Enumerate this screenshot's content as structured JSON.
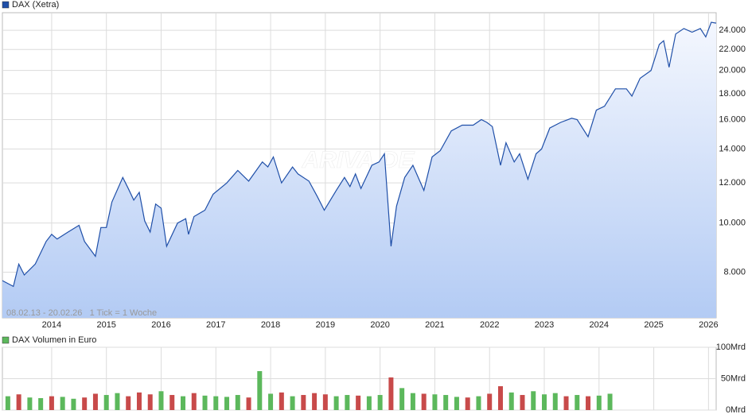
{
  "chart_data": [
    {
      "type": "line",
      "log_scale": true,
      "grid": true,
      "note": "08.02.13 - 20.02.26   1 Tick = 1 Woche",
      "watermark": "ARIVA.DE",
      "x": [
        2013.1,
        2013.3,
        2013.4,
        2013.5,
        2013.7,
        2013.9,
        2014.0,
        2014.1,
        2014.3,
        2014.5,
        2014.6,
        2014.8,
        2014.9,
        2015.0,
        2015.1,
        2015.3,
        2015.4,
        2015.5,
        2015.6,
        2015.7,
        2015.8,
        2015.9,
        2016.0,
        2016.1,
        2016.3,
        2016.45,
        2016.5,
        2016.6,
        2016.8,
        2016.95,
        2017.2,
        2017.4,
        2017.6,
        2017.85,
        2017.95,
        2018.05,
        2018.2,
        2018.4,
        2018.5,
        2018.7,
        2018.85,
        2018.98,
        2019.2,
        2019.35,
        2019.45,
        2019.55,
        2019.65,
        2019.85,
        2019.98,
        2020.08,
        2020.2,
        2020.3,
        2020.45,
        2020.6,
        2020.8,
        2020.95,
        2021.1,
        2021.3,
        2021.5,
        2021.7,
        2021.85,
        2021.95,
        2022.05,
        2022.2,
        2022.3,
        2022.45,
        2022.55,
        2022.7,
        2022.85,
        2022.95,
        2023.1,
        2023.3,
        2023.5,
        2023.6,
        2023.8,
        2023.95,
        2024.1,
        2024.3,
        2024.5,
        2024.6,
        2024.75,
        2024.95,
        2025.1,
        2025.18,
        2025.28,
        2025.4,
        2025.55,
        2025.7,
        2025.85,
        2025.95,
        2026.05,
        2026.14
      ],
      "series": [
        {
          "name": "DAX (Xetra)",
          "color": "#1f4fa8",
          "values": [
            7700,
            7500,
            8300,
            7900,
            8300,
            9200,
            9500,
            9300,
            9600,
            9900,
            9200,
            8600,
            9800,
            9800,
            11000,
            12300,
            11700,
            11100,
            11500,
            10100,
            9600,
            10900,
            10700,
            9000,
            10000,
            10200,
            9500,
            10300,
            10600,
            11400,
            12000,
            12700,
            12100,
            13200,
            12900,
            13500,
            12000,
            12900,
            12500,
            12100,
            11300,
            10600,
            11600,
            12300,
            11800,
            12500,
            11700,
            13000,
            13200,
            13700,
            9000,
            10800,
            12300,
            13000,
            11600,
            13500,
            13900,
            15200,
            15600,
            15600,
            16000,
            15800,
            15500,
            13000,
            14400,
            13200,
            13700,
            12200,
            13700,
            14000,
            15400,
            15800,
            16100,
            16000,
            14800,
            16700,
            17000,
            18400,
            18400,
            17800,
            19300,
            20000,
            22500,
            22900,
            20300,
            23600,
            24200,
            23800,
            24200,
            23300,
            24900,
            24800
          ]
        }
      ],
      "xlim": [
        2013.1,
        2026.14
      ],
      "xticks": [
        2014,
        2015,
        2016,
        2017,
        2018,
        2019,
        2020,
        2021,
        2022,
        2023,
        2024,
        2025,
        2026
      ],
      "ylim": [
        6500,
        26000
      ],
      "yticks": [
        {
          "value": 8000,
          "label": "8.000"
        },
        {
          "value": 10000,
          "label": "10.000"
        },
        {
          "value": 12000,
          "label": "12.000"
        },
        {
          "value": 14000,
          "label": "14.000"
        },
        {
          "value": 16000,
          "label": "16.000"
        },
        {
          "value": 18000,
          "label": "18.000"
        },
        {
          "value": 20000,
          "label": "20.000"
        },
        {
          "value": 22000,
          "label": "22.000"
        },
        {
          "value": 24000,
          "label": "24.000"
        }
      ]
    },
    {
      "type": "bar",
      "grid": true,
      "x": [
        2013.2,
        2013.4,
        2013.6,
        2013.8,
        2014.0,
        2014.2,
        2014.4,
        2014.6,
        2014.8,
        2015.0,
        2015.2,
        2015.4,
        2015.6,
        2015.8,
        2016.0,
        2016.2,
        2016.4,
        2016.6,
        2016.8,
        2017.0,
        2017.2,
        2017.4,
        2017.6,
        2017.8,
        2018.0,
        2018.2,
        2018.4,
        2018.6,
        2018.8,
        2019.0,
        2019.2,
        2019.4,
        2019.6,
        2019.8,
        2020.0,
        2020.2,
        2020.4,
        2020.6,
        2020.8,
        2021.0,
        2021.2,
        2021.4,
        2021.6,
        2021.8,
        2022.0,
        2022.2,
        2022.4,
        2022.6,
        2022.8,
        2023.0,
        2023.2,
        2023.4,
        2023.6,
        2023.8,
        2024.0,
        2024.2
      ],
      "series": [
        {
          "name": "DAX Volumen in Euro",
          "color": "#5cb85c",
          "values": [
            22,
            25,
            20,
            19,
            22,
            21,
            18,
            20,
            26,
            24,
            27,
            22,
            28,
            25,
            30,
            24,
            22,
            27,
            23,
            22,
            21,
            24,
            20,
            62,
            26,
            28,
            22,
            24,
            27,
            25,
            22,
            24,
            23,
            22,
            24,
            52,
            35,
            27,
            26,
            25,
            24,
            21,
            20,
            22,
            26,
            38,
            28,
            24,
            30,
            25,
            27,
            22,
            24,
            22,
            23,
            26
          ],
          "colors": [
            "#5cb85c",
            "#c84a4a",
            "#5cb85c",
            "#5cb85c",
            "#c84a4a",
            "#5cb85c",
            "#5cb85c",
            "#c84a4a",
            "#c84a4a",
            "#5cb85c",
            "#5cb85c",
            "#c84a4a",
            "#c84a4a",
            "#c84a4a",
            "#5cb85c",
            "#c84a4a",
            "#5cb85c",
            "#c84a4a",
            "#5cb85c",
            "#5cb85c",
            "#5cb85c",
            "#5cb85c",
            "#c84a4a",
            "#5cb85c",
            "#5cb85c",
            "#c84a4a",
            "#5cb85c",
            "#c84a4a",
            "#c84a4a",
            "#c84a4a",
            "#5cb85c",
            "#5cb85c",
            "#c84a4a",
            "#5cb85c",
            "#5cb85c",
            "#c84a4a",
            "#5cb85c",
            "#5cb85c",
            "#c84a4a",
            "#5cb85c",
            "#5cb85c",
            "#5cb85c",
            "#c84a4a",
            "#5cb85c",
            "#c84a4a",
            "#c84a4a",
            "#5cb85c",
            "#c84a4a",
            "#5cb85c",
            "#5cb85c",
            "#5cb85c",
            "#c84a4a",
            "#5cb85c",
            "#c84a4a",
            "#5cb85c",
            "#5cb85c"
          ]
        }
      ],
      "xlim": [
        2013.1,
        2026.14
      ],
      "xticks": [
        2014,
        2015,
        2016,
        2017,
        2018,
        2019,
        2020,
        2021,
        2022,
        2023,
        2024,
        2025,
        2026
      ],
      "ylim": [
        0,
        100
      ],
      "yticks": [
        {
          "value": 0,
          "label": "0Mrd"
        },
        {
          "value": 50,
          "label": "50Mrd"
        },
        {
          "value": 100,
          "label": "100Mrd"
        }
      ]
    }
  ]
}
